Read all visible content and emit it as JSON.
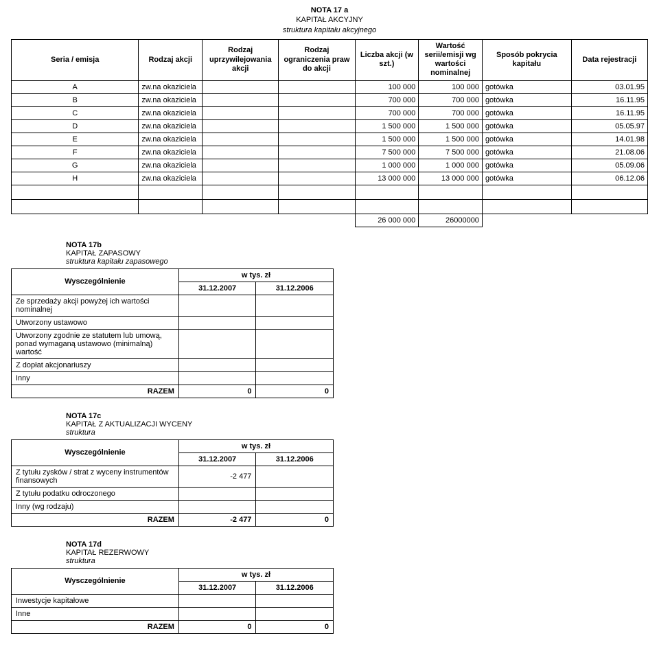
{
  "nota17a": {
    "title1": "NOTA 17 a",
    "title2": "KAPITAŁ AKCYJNY",
    "title3": "struktura kapitału akcyjnego",
    "headers": {
      "seria": "Seria / emisja",
      "rodzaj": "Rodzaj akcji",
      "upr": "Rodzaj uprzywilejowania akcji",
      "ogr": "Rodzaj ograniczenia praw do akcji",
      "liczba": "Liczba akcji (w szt.)",
      "wartosc": "Wartość serii/emisji wg wartości nominalnej",
      "sposob": "Sposób pokrycia kapitału",
      "data": "Data rejestracji"
    },
    "rows": [
      {
        "seria": "A",
        "rodzaj": "zw.na okaziciela",
        "upr": "",
        "ogr": "",
        "liczba": "100 000",
        "wartosc": "100 000",
        "sposob": "gotówka",
        "data": "03.01.95"
      },
      {
        "seria": "B",
        "rodzaj": "zw.na okaziciela",
        "upr": "",
        "ogr": "",
        "liczba": "700 000",
        "wartosc": "700 000",
        "sposob": "gotówka",
        "data": "16.11.95"
      },
      {
        "seria": "C",
        "rodzaj": "zw.na okaziciela",
        "upr": "",
        "ogr": "",
        "liczba": "700 000",
        "wartosc": "700 000",
        "sposob": "gotówka",
        "data": "16.11.95"
      },
      {
        "seria": "D",
        "rodzaj": "zw.na okaziciela",
        "upr": "",
        "ogr": "",
        "liczba": "1 500 000",
        "wartosc": "1 500 000",
        "sposob": "gotówka",
        "data": "05.05.97"
      },
      {
        "seria": "E",
        "rodzaj": "zw.na okaziciela",
        "upr": "",
        "ogr": "",
        "liczba": "1 500 000",
        "wartosc": "1 500 000",
        "sposob": "gotówka",
        "data": "14.01.98"
      },
      {
        "seria": "F",
        "rodzaj": "zw.na okaziciela",
        "upr": "",
        "ogr": "",
        "liczba": "7 500 000",
        "wartosc": "7 500 000",
        "sposob": "gotówka",
        "data": "21.08.06"
      },
      {
        "seria": "G",
        "rodzaj": "zw.na okaziciela",
        "upr": "",
        "ogr": "",
        "liczba": "1 000 000",
        "wartosc": "1 000 000",
        "sposob": "gotówka",
        "data": "05.09.06"
      },
      {
        "seria": "H",
        "rodzaj": "zw.na okaziciela",
        "upr": "",
        "ogr": "",
        "liczba": "13 000 000",
        "wartosc": "13 000 000",
        "sposob": "gotówka",
        "data": "06.12.06"
      }
    ],
    "total_liczba": "26 000 000",
    "total_wartosc": "26000000"
  },
  "nota17b": {
    "title1": "NOTA 17b",
    "title2": "KAPITAŁ ZAPASOWY",
    "title3": "struktura kapitału zapasowego",
    "col_label": "Wysczególnienie",
    "unit": "w tys. zł",
    "col_a": "31.12.2007",
    "col_b": "31.12.2006",
    "rows": [
      {
        "label": "Ze sprzedaży akcji powyżej ich wartości nominalnej",
        "a": "",
        "b": ""
      },
      {
        "label": "Utworzony ustawowo",
        "a": "",
        "b": ""
      },
      {
        "label": "Utworzony zgodnie ze statutem lub umową, ponad wymaganą ustawowo (minimalną) wartość",
        "a": "",
        "b": ""
      },
      {
        "label": "Z dopłat akcjonariuszy",
        "a": "",
        "b": ""
      },
      {
        "label": "Inny",
        "a": "",
        "b": ""
      }
    ],
    "razem_label": "RAZEM",
    "razem_a": "0",
    "razem_b": "0"
  },
  "nota17c": {
    "title1": "NOTA 17c",
    "title2": "KAPITAŁ  Z AKTUALIZACJI WYCENY",
    "title3": "struktura",
    "col_label": "Wysczególnienie",
    "unit": "w tys. zł",
    "col_a": "31.12.2007",
    "col_b": "31.12.2006",
    "rows": [
      {
        "label": "Z tytułu zysków / strat z wyceny instrumentów finansowych",
        "a": "-2 477",
        "b": ""
      },
      {
        "label": "Z tytułu podatku odroczonego",
        "a": "",
        "b": ""
      },
      {
        "label": "Inny (wg rodzaju)",
        "a": "",
        "b": ""
      }
    ],
    "razem_label": "RAZEM",
    "razem_a": "-2 477",
    "razem_b": "0"
  },
  "nota17d": {
    "title1": "NOTA 17d",
    "title2": "KAPITAŁ  REZERWOWY",
    "title3": "struktura",
    "col_label": "Wysczególnienie",
    "unit": "w tys. zł",
    "col_a": "31.12.2007",
    "col_b": "31.12.2006",
    "rows": [
      {
        "label": "Inwestycje kapitałowe",
        "a": "",
        "b": ""
      },
      {
        "label": "Inne",
        "a": "",
        "b": ""
      }
    ],
    "razem_label": "RAZEM",
    "razem_a": "0",
    "razem_b": "0"
  }
}
